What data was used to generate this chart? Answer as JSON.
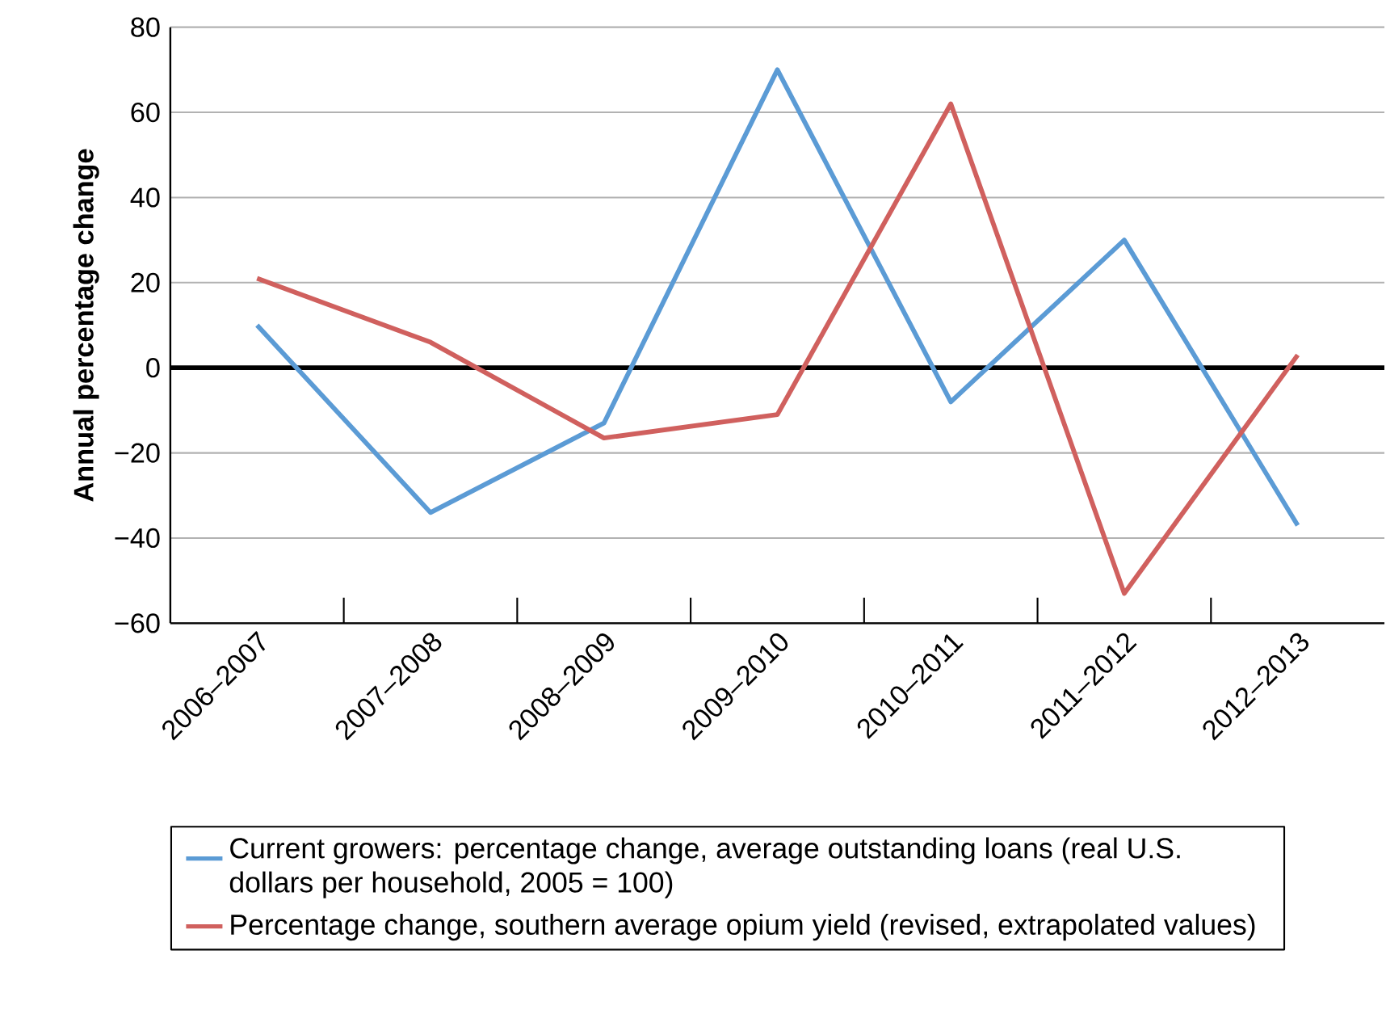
{
  "chart_data": {
    "type": "line",
    "ylabel": "Annual percentage change",
    "categories": [
      "2006–2007",
      "2007–2008",
      "2008–2009",
      "2009–2010",
      "2010–2011",
      "2011–2012",
      "2012–2013"
    ],
    "series": [
      {
        "name": "Current growers: percentage change, average outstanding loans (real U.S. dollars per household, 2005 = 100)",
        "color": "#5b9bd5",
        "values": [
          10,
          -34,
          -13,
          70,
          -8,
          30,
          -37
        ]
      },
      {
        "name": "Percentage change, southern average opium yield (revised, extrapolated values)",
        "color": "#d0605e",
        "values": [
          21,
          6,
          -16.5,
          -11,
          62,
          -53,
          3
        ]
      }
    ],
    "ylim": [
      -60,
      80
    ],
    "yticks": [
      {
        "value": -60,
        "label": "−60"
      },
      {
        "value": -40,
        "label": "−40"
      },
      {
        "value": -20,
        "label": "−20"
      },
      0,
      20,
      40,
      60,
      80
    ],
    "grid": "y",
    "legend": "bottom",
    "marker": "none",
    "line_style": "solid",
    "ref_lines": [
      {
        "axis": "y",
        "value": 0,
        "color": "#000000"
      }
    ]
  }
}
